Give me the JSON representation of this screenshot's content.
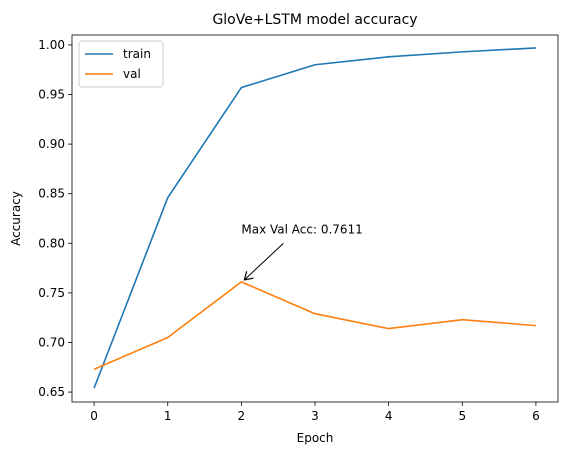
{
  "chart_data": {
    "type": "line",
    "title": "GloVe+LSTM model accuracy",
    "xlabel": "Epoch",
    "ylabel": "Accuracy",
    "x": [
      0,
      1,
      2,
      3,
      4,
      5,
      6
    ],
    "xlim": [
      -0.3,
      6.3
    ],
    "ylim": [
      0.64,
      1.01
    ],
    "xticks": [
      "0",
      "1",
      "2",
      "3",
      "4",
      "5",
      "6"
    ],
    "yticks": [
      "0.65",
      "0.70",
      "0.75",
      "0.80",
      "0.85",
      "0.90",
      "0.95",
      "1.00"
    ],
    "grid": false,
    "legend_position": "top-left",
    "series": [
      {
        "name": "train",
        "color": "#1f77b4",
        "values": [
          0.654,
          0.846,
          0.957,
          0.98,
          0.988,
          0.993,
          0.997
        ]
      },
      {
        "name": "val",
        "color": "#ff7f0e",
        "values": [
          0.673,
          0.705,
          0.7611,
          0.729,
          0.714,
          0.723,
          0.717
        ]
      }
    ],
    "annotation": {
      "text": "Max Val Acc: 0.7611",
      "x": 2,
      "y": 0.7611,
      "text_x": 2,
      "text_y": 0.81
    }
  }
}
